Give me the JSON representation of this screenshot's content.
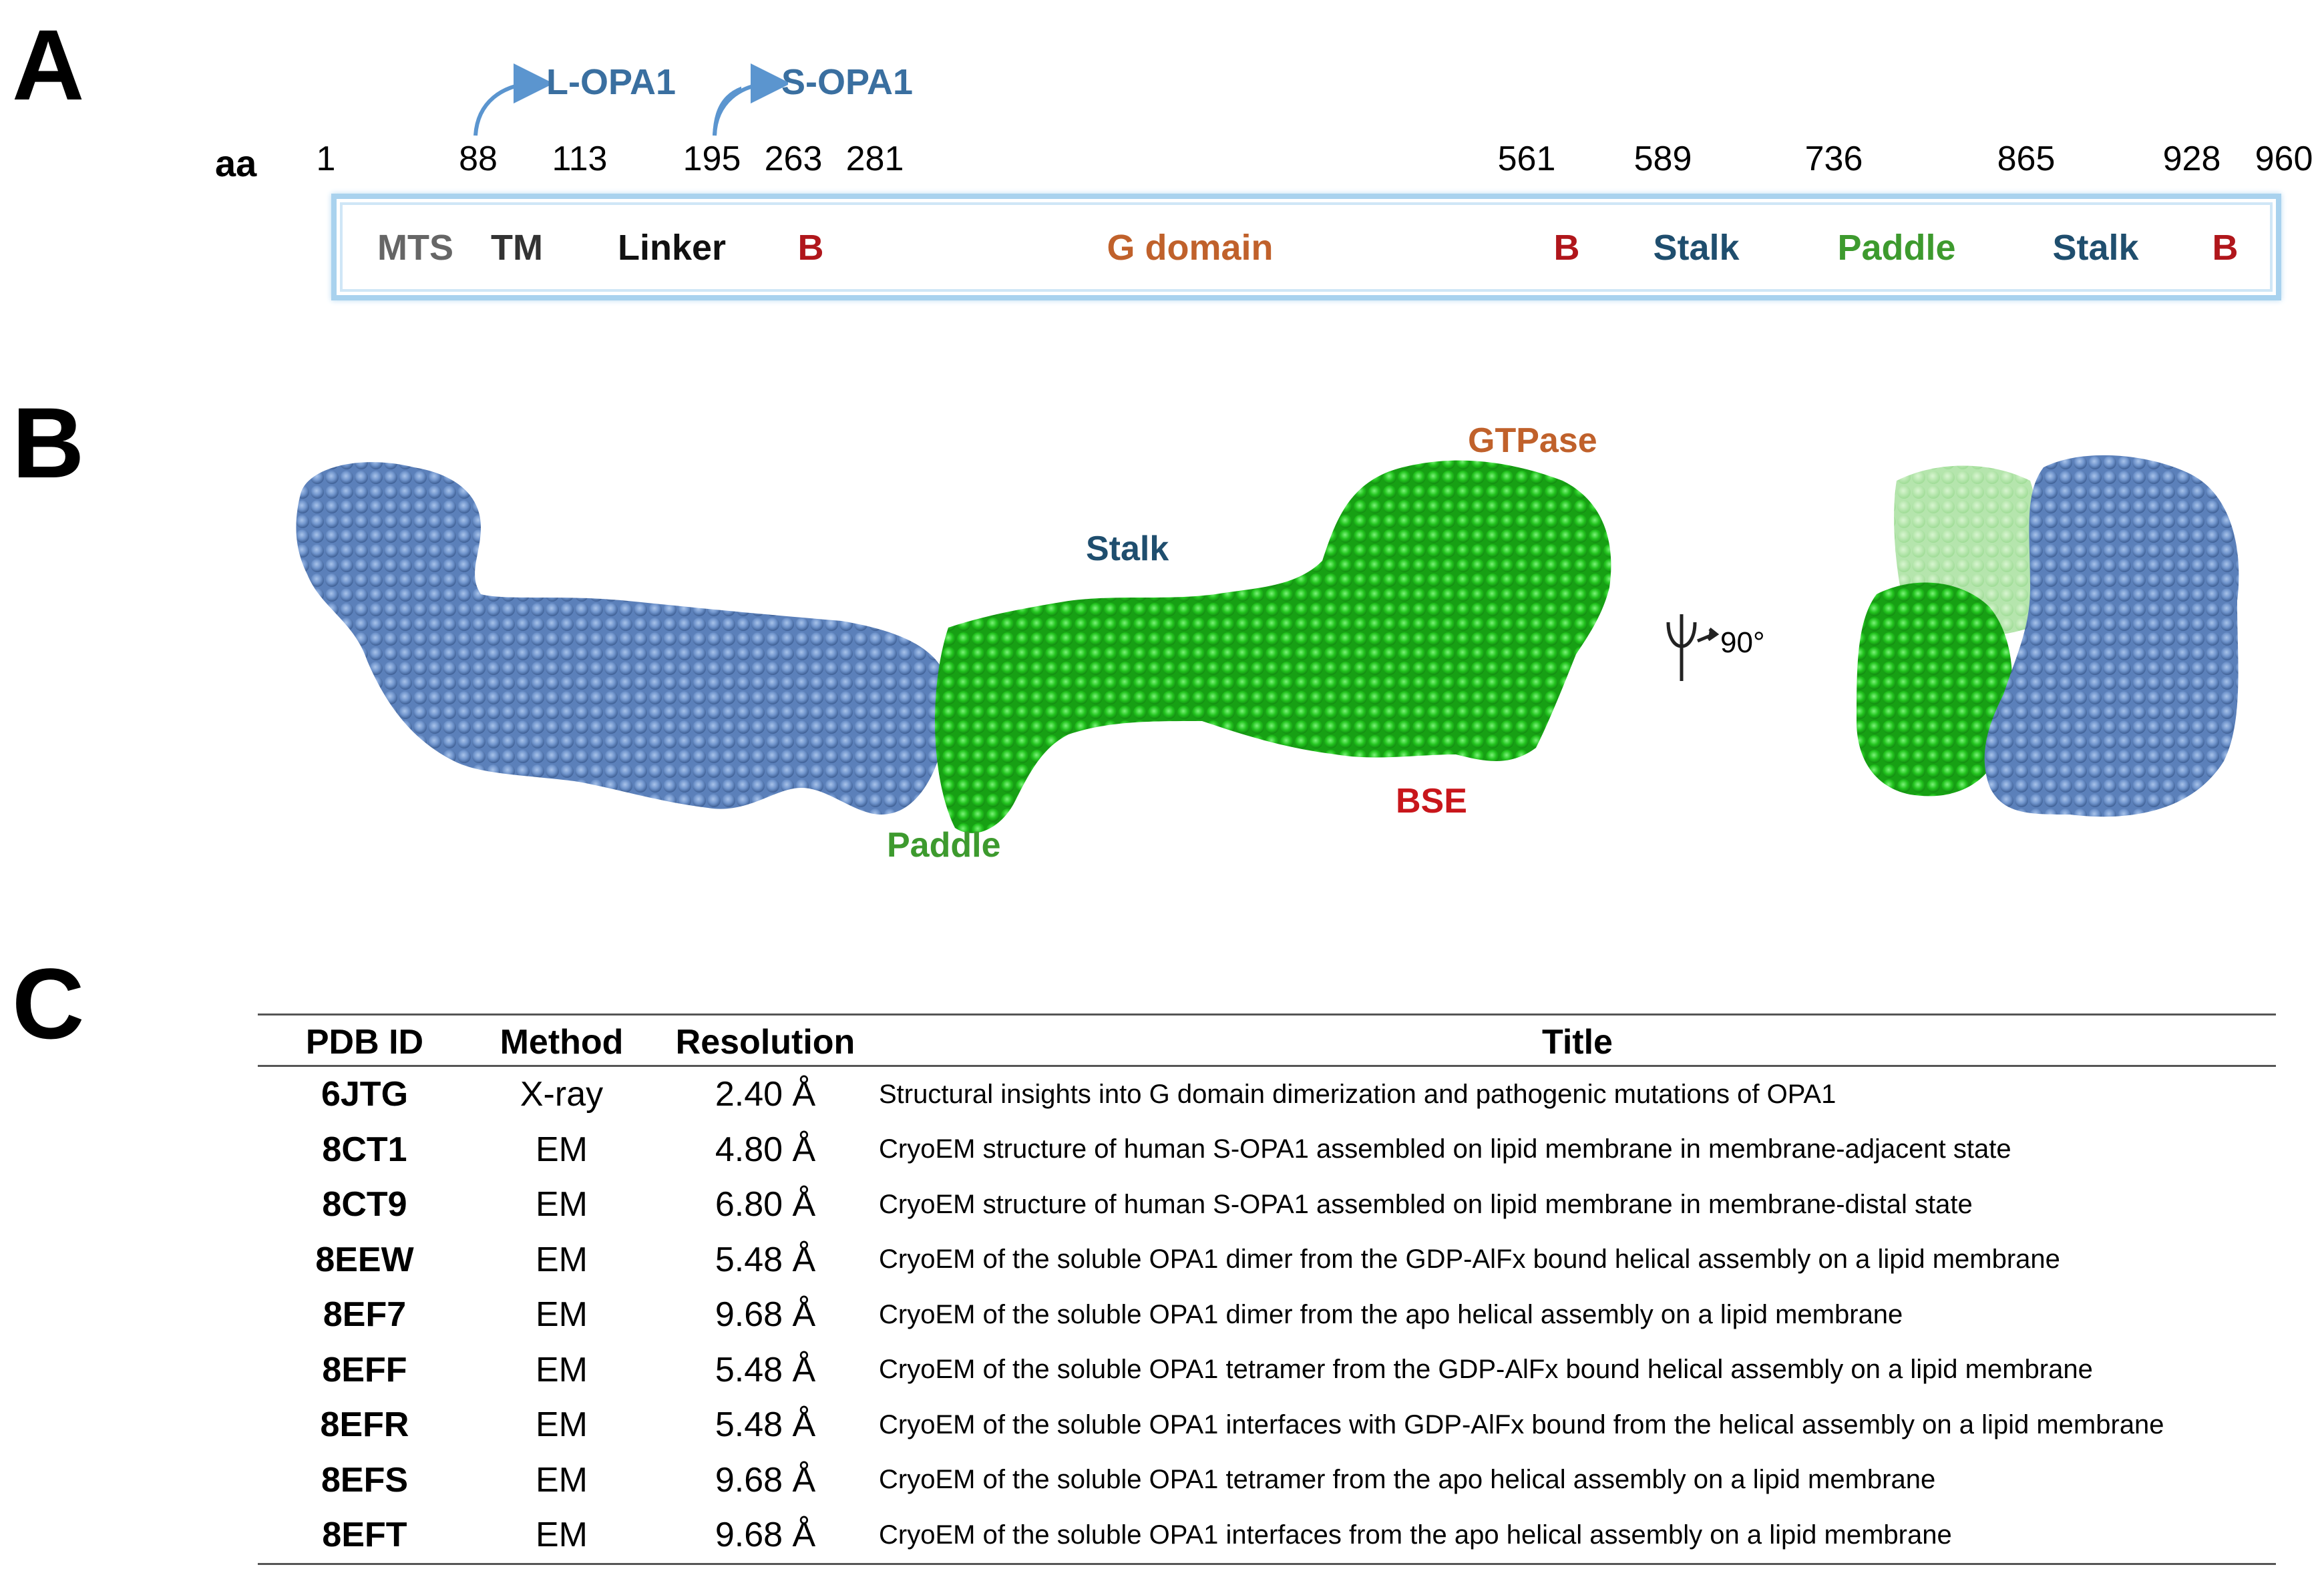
{
  "panels": {
    "a": "A",
    "b": "B",
    "c": "C"
  },
  "panel_a": {
    "aa_label": "aa",
    "positions": [
      "1",
      "88",
      "113",
      "195",
      "263",
      "281",
      "561",
      "589",
      "736",
      "865",
      "928",
      "960"
    ],
    "isoforms": [
      {
        "label": "L-OPA1",
        "color": "#3a6fa0"
      },
      {
        "label": "S-OPA1",
        "color": "#3a6fa0"
      }
    ],
    "domains": [
      {
        "label": "MTS",
        "color": "#666666"
      },
      {
        "label": "TM",
        "color": "#333333"
      },
      {
        "label": "Linker",
        "color": "#111111"
      },
      {
        "label": "B",
        "color": "#b0161b"
      },
      {
        "label": "G domain",
        "color": "#c0612b"
      },
      {
        "label": "B",
        "color": "#b0161b"
      },
      {
        "label": "Stalk",
        "color": "#1f4e6e"
      },
      {
        "label": "Paddle",
        "color": "#3d9a2e"
      },
      {
        "label": "Stalk",
        "color": "#1f4e6e"
      },
      {
        "label": "B",
        "color": "#b0161b"
      }
    ]
  },
  "panel_b": {
    "labels": {
      "gtpase": "GTPase",
      "stalk": "Stalk",
      "paddle": "Paddle",
      "bse": "BSE",
      "rotation": "90°"
    },
    "colors": {
      "gtpase": "#c0612b",
      "stalk": "#1f4e6e",
      "paddle": "#3d9a2e",
      "bse": "#c8161b",
      "blue_atoms": "#6f94cc",
      "green_atoms": "#22c41e"
    }
  },
  "panel_c": {
    "headers": [
      "PDB ID",
      "Method",
      "Resolution",
      "Title"
    ],
    "rows": [
      {
        "id": "6JTG",
        "method": "X-ray",
        "resolution": "2.40 Å",
        "title": "Structural insights into G domain dimerization and pathogenic mutations of OPA1"
      },
      {
        "id": "8CT1",
        "method": "EM",
        "resolution": "4.80 Å",
        "title": "CryoEM structure of human S-OPA1 assembled on lipid membrane in membrane-adjacent state"
      },
      {
        "id": "8CT9",
        "method": "EM",
        "resolution": "6.80 Å",
        "title": "CryoEM structure of human S-OPA1 assembled on lipid membrane in membrane-distal state"
      },
      {
        "id": "8EEW",
        "method": "EM",
        "resolution": "5.48 Å",
        "title": "CryoEM of the soluble OPA1 dimer from the GDP-AlFx bound helical assembly on a lipid membrane"
      },
      {
        "id": "8EF7",
        "method": "EM",
        "resolution": "9.68 Å",
        "title": "CryoEM of the soluble OPA1 dimer from the apo helical assembly on a lipid membrane"
      },
      {
        "id": "8EFF",
        "method": "EM",
        "resolution": "5.48 Å",
        "title": "CryoEM of the soluble OPA1 tetramer from the GDP-AlFx bound helical assembly on a lipid membrane"
      },
      {
        "id": "8EFR",
        "method": "EM",
        "resolution": "5.48 Å",
        "title": "CryoEM of the soluble OPA1 interfaces with GDP-AlFx bound from the helical assembly on a lipid membrane"
      },
      {
        "id": "8EFS",
        "method": "EM",
        "resolution": "9.68 Å",
        "title": "CryoEM of the soluble OPA1 tetramer from the apo helical assembly on a lipid membrane"
      },
      {
        "id": "8EFT",
        "method": "EM",
        "resolution": "9.68 Å",
        "title": "CryoEM of the soluble OPA1 interfaces from the apo helical assembly on a lipid membrane"
      }
    ]
  }
}
